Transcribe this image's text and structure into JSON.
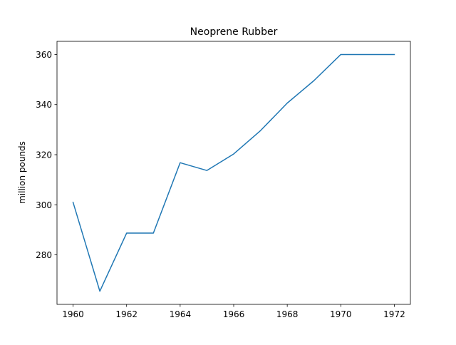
{
  "chart_data": {
    "type": "line",
    "title": "Neoprene Rubber",
    "xlabel": "",
    "ylabel": "million pounds",
    "x": [
      1960,
      1961,
      1962,
      1963,
      1964,
      1965,
      1966,
      1967,
      1968,
      1969,
      1970,
      1971,
      1972
    ],
    "series": [
      {
        "values": [
          301,
          265.5,
          288.7,
          288.7,
          316.8,
          313.7,
          320.3,
          329.6,
          340.6,
          349.6,
          360,
          360,
          360
        ],
        "color": "#1f77b4"
      }
    ],
    "xlim": [
      1959.4,
      1972.6
    ],
    "ylim": [
      260.25,
      365.25
    ],
    "xticks": [
      1960,
      1962,
      1964,
      1966,
      1968,
      1970,
      1972
    ],
    "yticks": [
      280,
      300,
      320,
      340,
      360
    ],
    "grid": false,
    "legend": "none"
  }
}
